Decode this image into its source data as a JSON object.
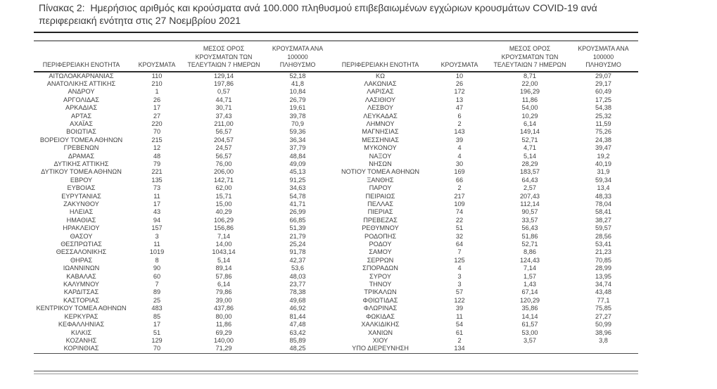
{
  "title": "Πίνακας 2:  Ημερήσιος αριθμός και κρούσματα ανά 100.000 πληθυσμού επιβεβαιωμένων εγχώριων κρουσμάτων COVID-19 ανά περιφερειακή ενότητα στις 27 Νοεμβρίου 2021",
  "table": {
    "columns": {
      "region": "ΠΕΡΙΦΕΡΕΙΑΚΗ ΕΝΟΤΗΤΑ",
      "cases": "ΚΡΟΥΣΜΑΤΑ",
      "avg7": "ΜΕΣΟΣ ΟΡΟΣ\nΚΡΟΥΣΜΑΤΩΝ ΤΩΝ\nΤΕΛΕΥΤΑΙΩΝ 7 ΗΜΕΡΩΝ",
      "per100k": "ΚΡΟΥΣΜΑΤΑ ΑΝΑ 100000\nΠΛΗΘΥΣΜΟ"
    },
    "left_rows": [
      [
        "ΑΙΤΩΛΟΑΚΑΡΝΑΝΙΑΣ",
        "110",
        "129,14",
        "52,18"
      ],
      [
        "ΑΝΑΤΟΛΙΚΗΣ ΑΤΤΙΚΗΣ",
        "210",
        "197,86",
        "41,8"
      ],
      [
        "ΑΝΔΡΟΥ",
        "1",
        "0,57",
        "10,84"
      ],
      [
        "ΑΡΓΟΛΙΔΑΣ",
        "26",
        "44,71",
        "26,79"
      ],
      [
        "ΑΡΚΑΔΙΑΣ",
        "17",
        "30,71",
        "19,61"
      ],
      [
        "ΑΡΤΑΣ",
        "27",
        "37,43",
        "39,78"
      ],
      [
        "ΑΧΑΪΑΣ",
        "220",
        "211,00",
        "70,9"
      ],
      [
        "ΒΟΙΩΤΙΑΣ",
        "70",
        "56,57",
        "59,36"
      ],
      [
        "ΒΟΡΕΙΟΥ ΤΟΜΕΑ ΑΘΗΝΩΝ",
        "215",
        "204,57",
        "36,34"
      ],
      [
        "ΓΡΕΒΕΝΩΝ",
        "12",
        "24,57",
        "37,79"
      ],
      [
        "ΔΡΑΜΑΣ",
        "48",
        "56,57",
        "48,84"
      ],
      [
        "ΔΥΤΙΚΗΣ ΑΤΤΙΚΗΣ",
        "79",
        "76,00",
        "49,09"
      ],
      [
        "ΔΥΤΙΚΟΥ ΤΟΜΕΑ ΑΘΗΝΩΝ",
        "221",
        "206,00",
        "45,13"
      ],
      [
        "ΕΒΡΟΥ",
        "135",
        "142,71",
        "91,25"
      ],
      [
        "ΕΥΒΟΙΑΣ",
        "73",
        "62,00",
        "34,63"
      ],
      [
        "ΕΥΡΥΤΑΝΙΑΣ",
        "11",
        "15,71",
        "54,78"
      ],
      [
        "ΖΑΚΥΝΘΟΥ",
        "17",
        "15,00",
        "41,71"
      ],
      [
        "ΗΛΕΙΑΣ",
        "43",
        "40,29",
        "26,99"
      ],
      [
        "ΗΜΑΘΙΑΣ",
        "94",
        "106,29",
        "66,85"
      ],
      [
        "ΗΡΑΚΛΕΙΟΥ",
        "157",
        "156,86",
        "51,39"
      ],
      [
        "ΘΑΣΟΥ",
        "3",
        "7,14",
        "21,79"
      ],
      [
        "ΘΕΣΠΡΩΤΙΑΣ",
        "11",
        "14,00",
        "25,24"
      ],
      [
        "ΘΕΣΣΑΛΟΝΙΚΗΣ",
        "1019",
        "1043,14",
        "91,78"
      ],
      [
        "ΘΗΡΑΣ",
        "8",
        "5,14",
        "42,37"
      ],
      [
        "ΙΩΑΝΝΙΝΩΝ",
        "90",
        "89,14",
        "53,6"
      ],
      [
        "ΚΑΒΑΛΑΣ",
        "60",
        "57,86",
        "48,03"
      ],
      [
        "ΚΑΛΥΜΝΟΥ",
        "7",
        "6,14",
        "23,77"
      ],
      [
        "ΚΑΡΔΙΤΣΑΣ",
        "89",
        "79,86",
        "78,38"
      ],
      [
        "ΚΑΣΤΟΡΙΑΣ",
        "25",
        "39,00",
        "49,68"
      ],
      [
        "ΚΕΝΤΡΙΚΟΥ ΤΟΜΕΑ ΑΘΗΝΩΝ",
        "483",
        "437,86",
        "46,92"
      ],
      [
        "ΚΕΡΚΥΡΑΣ",
        "85",
        "80,00",
        "81,44"
      ],
      [
        "ΚΕΦΑΛΛΗΝΙΑΣ",
        "17",
        "11,86",
        "47,48"
      ],
      [
        "ΚΙΛΚΙΣ",
        "51",
        "69,29",
        "63,42"
      ],
      [
        "ΚΟΖΑΝΗΣ",
        "129",
        "140,00",
        "85,89"
      ],
      [
        "ΚΟΡΙΝΘΙΑΣ",
        "70",
        "71,29",
        "48,25"
      ]
    ],
    "right_rows": [
      [
        "ΚΩ",
        "10",
        "8,71",
        "29,07"
      ],
      [
        "ΛΑΚΩΝΙΑΣ",
        "26",
        "22,00",
        "29,17"
      ],
      [
        "ΛΑΡΙΣΑΣ",
        "172",
        "196,29",
        "60,49"
      ],
      [
        "ΛΑΣΙΘΙΟΥ",
        "13",
        "11,86",
        "17,25"
      ],
      [
        "ΛΕΣΒΟΥ",
        "47",
        "54,00",
        "54,38"
      ],
      [
        "ΛΕΥΚΑΔΑΣ",
        "6",
        "10,29",
        "25,32"
      ],
      [
        "ΛΗΜΝΟΥ",
        "2",
        "6,14",
        "11,59"
      ],
      [
        "ΜΑΓΝΗΣΙΑΣ",
        "143",
        "149,14",
        "75,26"
      ],
      [
        "ΜΕΣΣΗΝΙΑΣ",
        "39",
        "52,71",
        "24,38"
      ],
      [
        "ΜΥΚΟΝΟΥ",
        "4",
        "4,71",
        "39,47"
      ],
      [
        "ΝΑΞΟΥ",
        "4",
        "5,14",
        "19,2"
      ],
      [
        "ΝΗΣΩΝ",
        "30",
        "28,29",
        "40,19"
      ],
      [
        "ΝΟΤΙΟΥ ΤΟΜΕΑ ΑΘΗΝΩΝ",
        "169",
        "183,57",
        "31,9"
      ],
      [
        "ΞΑΝΘΗΣ",
        "66",
        "64,43",
        "59,34"
      ],
      [
        "ΠΑΡΟΥ",
        "2",
        "2,57",
        "13,4"
      ],
      [
        "ΠΕΙΡΑΙΩΣ",
        "217",
        "207,43",
        "48,33"
      ],
      [
        "ΠΕΛΛΑΣ",
        "109",
        "112,14",
        "78,04"
      ],
      [
        "ΠΙΕΡΙΑΣ",
        "74",
        "90,57",
        "58,41"
      ],
      [
        "ΠΡΕΒΕΖΑΣ",
        "22",
        "33,57",
        "38,27"
      ],
      [
        "ΡΕΘΥΜΝΟΥ",
        "51",
        "56,43",
        "59,57"
      ],
      [
        "ΡΟΔΟΠΗΣ",
        "32",
        "51,86",
        "28,56"
      ],
      [
        "ΡΟΔΟΥ",
        "64",
        "52,71",
        "53,41"
      ],
      [
        "ΣΑΜΟΥ",
        "7",
        "8,86",
        "21,23"
      ],
      [
        "ΣΕΡΡΩΝ",
        "125",
        "124,43",
        "70,85"
      ],
      [
        "ΣΠΟΡΑΔΩΝ",
        "4",
        "7,14",
        "28,99"
      ],
      [
        "ΣΥΡΟΥ",
        "3",
        "1,57",
        "13,95"
      ],
      [
        "ΤΗΝΟΥ",
        "3",
        "1,43",
        "34,74"
      ],
      [
        "ΤΡΙΚΑΛΩΝ",
        "57",
        "67,14",
        "43,48"
      ],
      [
        "ΦΘΙΩΤΙΔΑΣ",
        "122",
        "120,29",
        "77,1"
      ],
      [
        "ΦΛΩΡΙΝΑΣ",
        "39",
        "35,86",
        "75,85"
      ],
      [
        "ΦΩΚΙΔΑΣ",
        "11",
        "14,14",
        "27,27"
      ],
      [
        "ΧΑΛΚΙΔΙΚΗΣ",
        "54",
        "61,57",
        "50,99"
      ],
      [
        "ΧΑΝΙΩΝ",
        "61",
        "53,00",
        "38,96"
      ],
      [
        "ΧΙΟΥ",
        "2",
        "3,57",
        "3,8"
      ],
      [
        "ΥΠΟ ΔΙΕΡΕΥΝΗΣΗ",
        "134",
        "",
        ""
      ]
    ]
  },
  "colors": {
    "text": "#3f3f3f",
    "rule_dark": "#222222",
    "rule_gray": "#8c8c8c"
  }
}
